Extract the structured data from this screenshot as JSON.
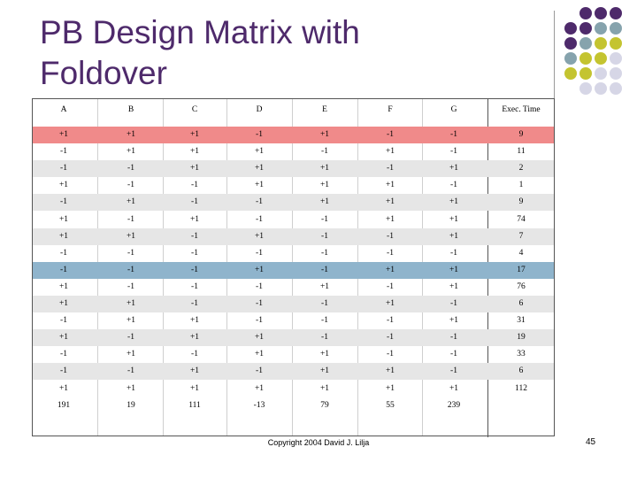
{
  "slide": {
    "title": "PB Design Matrix with Foldover",
    "footer": "Copyright 2004 David J. Lilja",
    "page_number": "45"
  },
  "colors": {
    "title": "#4e2a6b",
    "header_row_highlight": "#f08a8a",
    "foldover_row_highlight": "#8fb4cc",
    "zebra": "#e6e6e6",
    "dot_purple": "#4e2a6b",
    "dot_slate": "#86a3ad",
    "dot_olive": "#c4c430",
    "dot_lavender": "#d6d6e6"
  },
  "table": {
    "headers": [
      "A",
      "B",
      "C",
      "D",
      "E",
      "F",
      "G",
      "Exec. Time"
    ],
    "rows": [
      [
        "+1",
        "+1",
        "+1",
        "-1",
        "+1",
        "-1",
        "-1",
        "9"
      ],
      [
        "-1",
        "+1",
        "+1",
        "+1",
        "-1",
        "+1",
        "-1",
        "11"
      ],
      [
        "-1",
        "-1",
        "+1",
        "+1",
        "+1",
        "-1",
        "+1",
        "2"
      ],
      [
        "+1",
        "-1",
        "-1",
        "+1",
        "+1",
        "+1",
        "-1",
        "1"
      ],
      [
        "-1",
        "+1",
        "-1",
        "-1",
        "+1",
        "+1",
        "+1",
        "9"
      ],
      [
        "+1",
        "-1",
        "+1",
        "-1",
        "-1",
        "+1",
        "+1",
        "74"
      ],
      [
        "+1",
        "+1",
        "-1",
        "+1",
        "-1",
        "-1",
        "+1",
        "7"
      ],
      [
        "-1",
        "-1",
        "-1",
        "-1",
        "-1",
        "-1",
        "-1",
        "4"
      ],
      [
        "-1",
        "-1",
        "-1",
        "+1",
        "-1",
        "+1",
        "+1",
        "17"
      ],
      [
        "+1",
        "-1",
        "-1",
        "-1",
        "+1",
        "-1",
        "+1",
        "76"
      ],
      [
        "+1",
        "+1",
        "-1",
        "-1",
        "-1",
        "+1",
        "-1",
        "6"
      ],
      [
        "-1",
        "+1",
        "+1",
        "-1",
        "-1",
        "-1",
        "+1",
        "31"
      ],
      [
        "+1",
        "-1",
        "+1",
        "+1",
        "-1",
        "-1",
        "-1",
        "19"
      ],
      [
        "-1",
        "+1",
        "-1",
        "+1",
        "+1",
        "-1",
        "-1",
        "33"
      ],
      [
        "-1",
        "-1",
        "+1",
        "-1",
        "+1",
        "+1",
        "-1",
        "6"
      ],
      [
        "+1",
        "+1",
        "+1",
        "+1",
        "+1",
        "+1",
        "+1",
        "112"
      ]
    ],
    "totals": [
      "191",
      "19",
      "111",
      "-13",
      "79",
      "55",
      "239"
    ]
  }
}
